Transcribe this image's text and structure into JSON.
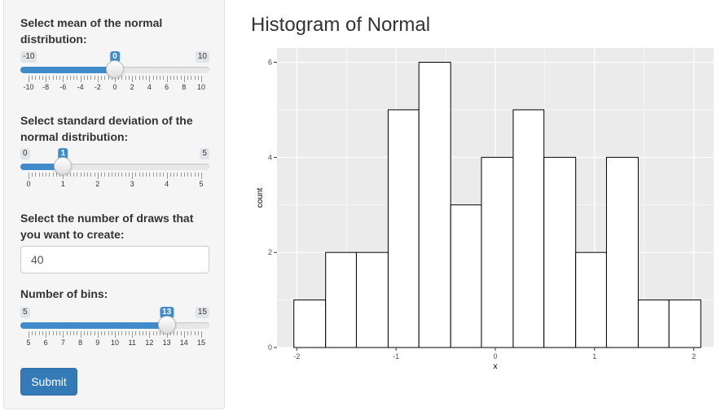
{
  "sidebar": {
    "mean": {
      "label": "Select mean of the normal distribution:",
      "min": -10,
      "max": 10,
      "value": 0,
      "min_label": "-10",
      "max_label": "10",
      "value_label": "0",
      "ticks": [
        "-10",
        "-8",
        "-6",
        "-4",
        "-2",
        "0",
        "2",
        "4",
        "6",
        "8",
        "10"
      ],
      "minor_per_major": 4
    },
    "sd": {
      "label": "Select standard deviation of the normal distribution:",
      "min": 0,
      "max": 5,
      "value": 1,
      "min_label": "0",
      "max_label": "5",
      "value_label": "1",
      "ticks": [
        "0",
        "1",
        "2",
        "3",
        "4",
        "5"
      ],
      "minor_per_major": 9
    },
    "draws": {
      "label": "Select the number of draws that you want to create:",
      "value": "40"
    },
    "bins": {
      "label": "Number of bins:",
      "min": 5,
      "max": 15,
      "value": 13,
      "min_label": "5",
      "max_label": "15",
      "value_label": "13",
      "ticks": [
        "5",
        "6",
        "7",
        "8",
        "9",
        "10",
        "11",
        "12",
        "13",
        "14",
        "15"
      ],
      "minor_per_major": 4
    },
    "submit_label": "Submit"
  },
  "plot_title": "Histogram of Normal",
  "chart_data": {
    "type": "bar",
    "title": "",
    "xlabel": "x",
    "ylabel": "count",
    "xlim": [
      -2.2,
      2.2
    ],
    "ylim": [
      0,
      6.3
    ],
    "x_ticks": [
      -2,
      -1,
      0,
      1,
      2
    ],
    "y_ticks": [
      0,
      2,
      4,
      6
    ],
    "bins": [
      {
        "x0": -2.03,
        "x1": -1.71,
        "count": 1
      },
      {
        "x0": -1.71,
        "x1": -1.4,
        "count": 2
      },
      {
        "x0": -1.4,
        "x1": -1.08,
        "count": 2
      },
      {
        "x0": -1.08,
        "x1": -0.77,
        "count": 5
      },
      {
        "x0": -0.77,
        "x1": -0.45,
        "count": 6
      },
      {
        "x0": -0.45,
        "x1": -0.14,
        "count": 3
      },
      {
        "x0": -0.14,
        "x1": 0.18,
        "count": 4
      },
      {
        "x0": 0.18,
        "x1": 0.49,
        "count": 5
      },
      {
        "x0": 0.49,
        "x1": 0.81,
        "count": 4
      },
      {
        "x0": 0.81,
        "x1": 1.12,
        "count": 2
      },
      {
        "x0": 1.12,
        "x1": 1.44,
        "count": 4
      },
      {
        "x0": 1.44,
        "x1": 1.75,
        "count": 1
      },
      {
        "x0": 1.75,
        "x1": 2.07,
        "count": 1
      }
    ],
    "panel_background": "#ebebeb",
    "grid_color": "#ffffff",
    "bar_fill": "#ffffff",
    "bar_outline": "#000000",
    "grid": true
  }
}
